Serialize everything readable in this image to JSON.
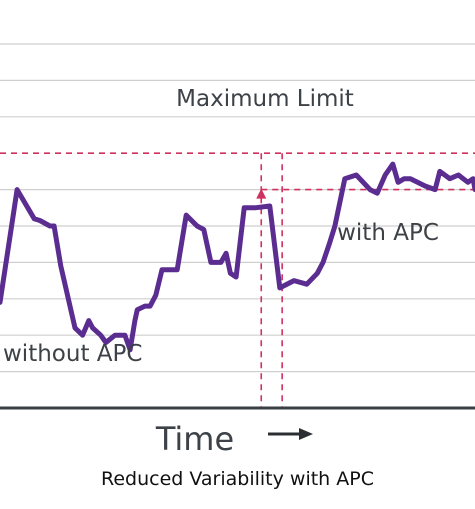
{
  "chart_data": {
    "type": "line",
    "xlabel": "Time",
    "ylabel": "",
    "xlim": [
      0,
      100
    ],
    "ylim": [
      0,
      10
    ],
    "grid": true,
    "limit_label": "Maximum Limit",
    "maximum_limit": 7.0,
    "target_level": 6.0,
    "apc_start_x": [
      55,
      59.4
    ],
    "annotations": [
      "without APC",
      "with APC"
    ],
    "series": [
      {
        "x": [
          0,
          3.6,
          7.2,
          8.4,
          10.5,
          11.4,
          12.8,
          15.8,
          17.4,
          18.7,
          19.5,
          21.2,
          22.3,
          24.2,
          26.3,
          27.4,
          28.4,
          28.9,
          30.5,
          31.6,
          32.8,
          34.1,
          37.3,
          39.2,
          41.5,
          42.9,
          44.4,
          46.5,
          47.6,
          48.5,
          49.7,
          51.4,
          53.7,
          56.8,
          58.9,
          61.9,
          64.6,
          66.8,
          68.0,
          69.3,
          70.5,
          72.6,
          75.0,
          77.9,
          79.4,
          81.1,
          82.7,
          83.8,
          85.1,
          86.4,
          89.5,
          91.6,
          92.6,
          94.7,
          96.5,
          98.5,
          99.6,
          100
        ],
        "y": [
          2.9,
          6.0,
          5.2,
          5.15,
          5.0,
          5.0,
          3.9,
          2.2,
          2.0,
          2.4,
          2.2,
          2.0,
          1.8,
          2.0,
          2.0,
          1.6,
          2.4,
          2.7,
          2.8,
          2.8,
          3.1,
          3.8,
          3.8,
          5.3,
          5.0,
          4.9,
          4.0,
          4.0,
          4.25,
          3.7,
          3.6,
          5.5,
          5.5,
          5.55,
          3.3,
          3.5,
          3.4,
          3.7,
          4.0,
          4.5,
          5.0,
          6.3,
          6.4,
          6.0,
          5.9,
          6.4,
          6.7,
          6.2,
          6.3,
          6.3,
          6.1,
          6.0,
          6.5,
          6.3,
          6.4,
          6.2,
          6.3,
          6.0
        ]
      }
    ]
  },
  "caption": "Reduced Variability with APC",
  "colors": {
    "series": "#5b2d91",
    "limit": "#d0305e",
    "grid": "#cfcfcf",
    "axis": "#3a3f44",
    "annotation": "#3c4247"
  }
}
